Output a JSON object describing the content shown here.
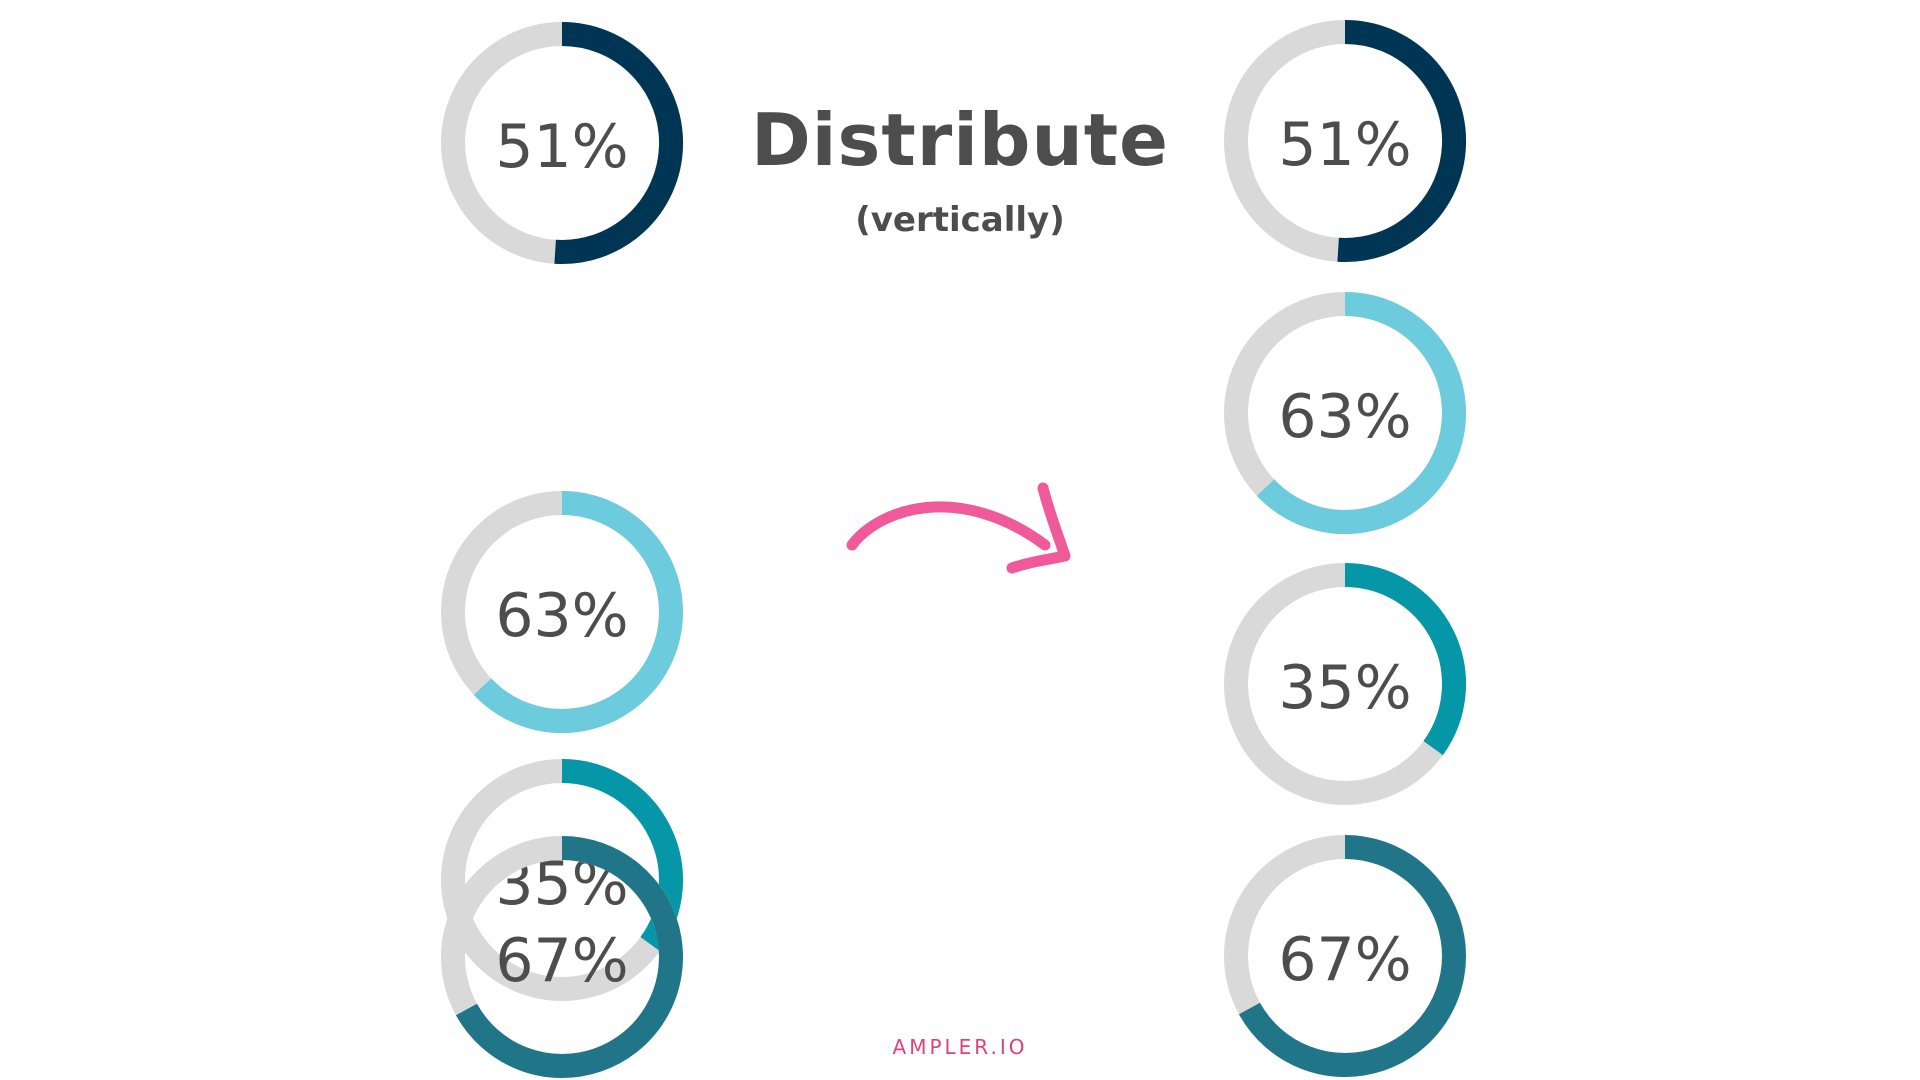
{
  "heading": {
    "title": "Distribute",
    "subtitle": "(vertically)"
  },
  "footer": {
    "brand": "AMPLER.IO"
  },
  "colors": {
    "track": "#d9d9d9",
    "label": "#4d4d4d",
    "arrow": "#f05a9a",
    "footer": "#e0407f"
  },
  "before": {
    "gauges": [
      {
        "label": "51%",
        "value": 51,
        "color": "#003554"
      },
      {
        "label": "63%",
        "value": 63,
        "color": "#6ccbdc"
      },
      {
        "label": "35%",
        "value": 35,
        "color": "#0596a7"
      },
      {
        "label": "67%",
        "value": 67,
        "color": "#207688"
      }
    ]
  },
  "after": {
    "gauges": [
      {
        "label": "51%",
        "value": 51,
        "color": "#003554"
      },
      {
        "label": "63%",
        "value": 63,
        "color": "#6ccbdc"
      },
      {
        "label": "35%",
        "value": 35,
        "color": "#0596a7"
      },
      {
        "label": "67%",
        "value": 67,
        "color": "#207688"
      }
    ]
  },
  "icons": {
    "arrow": "curved-arrow-icon"
  }
}
